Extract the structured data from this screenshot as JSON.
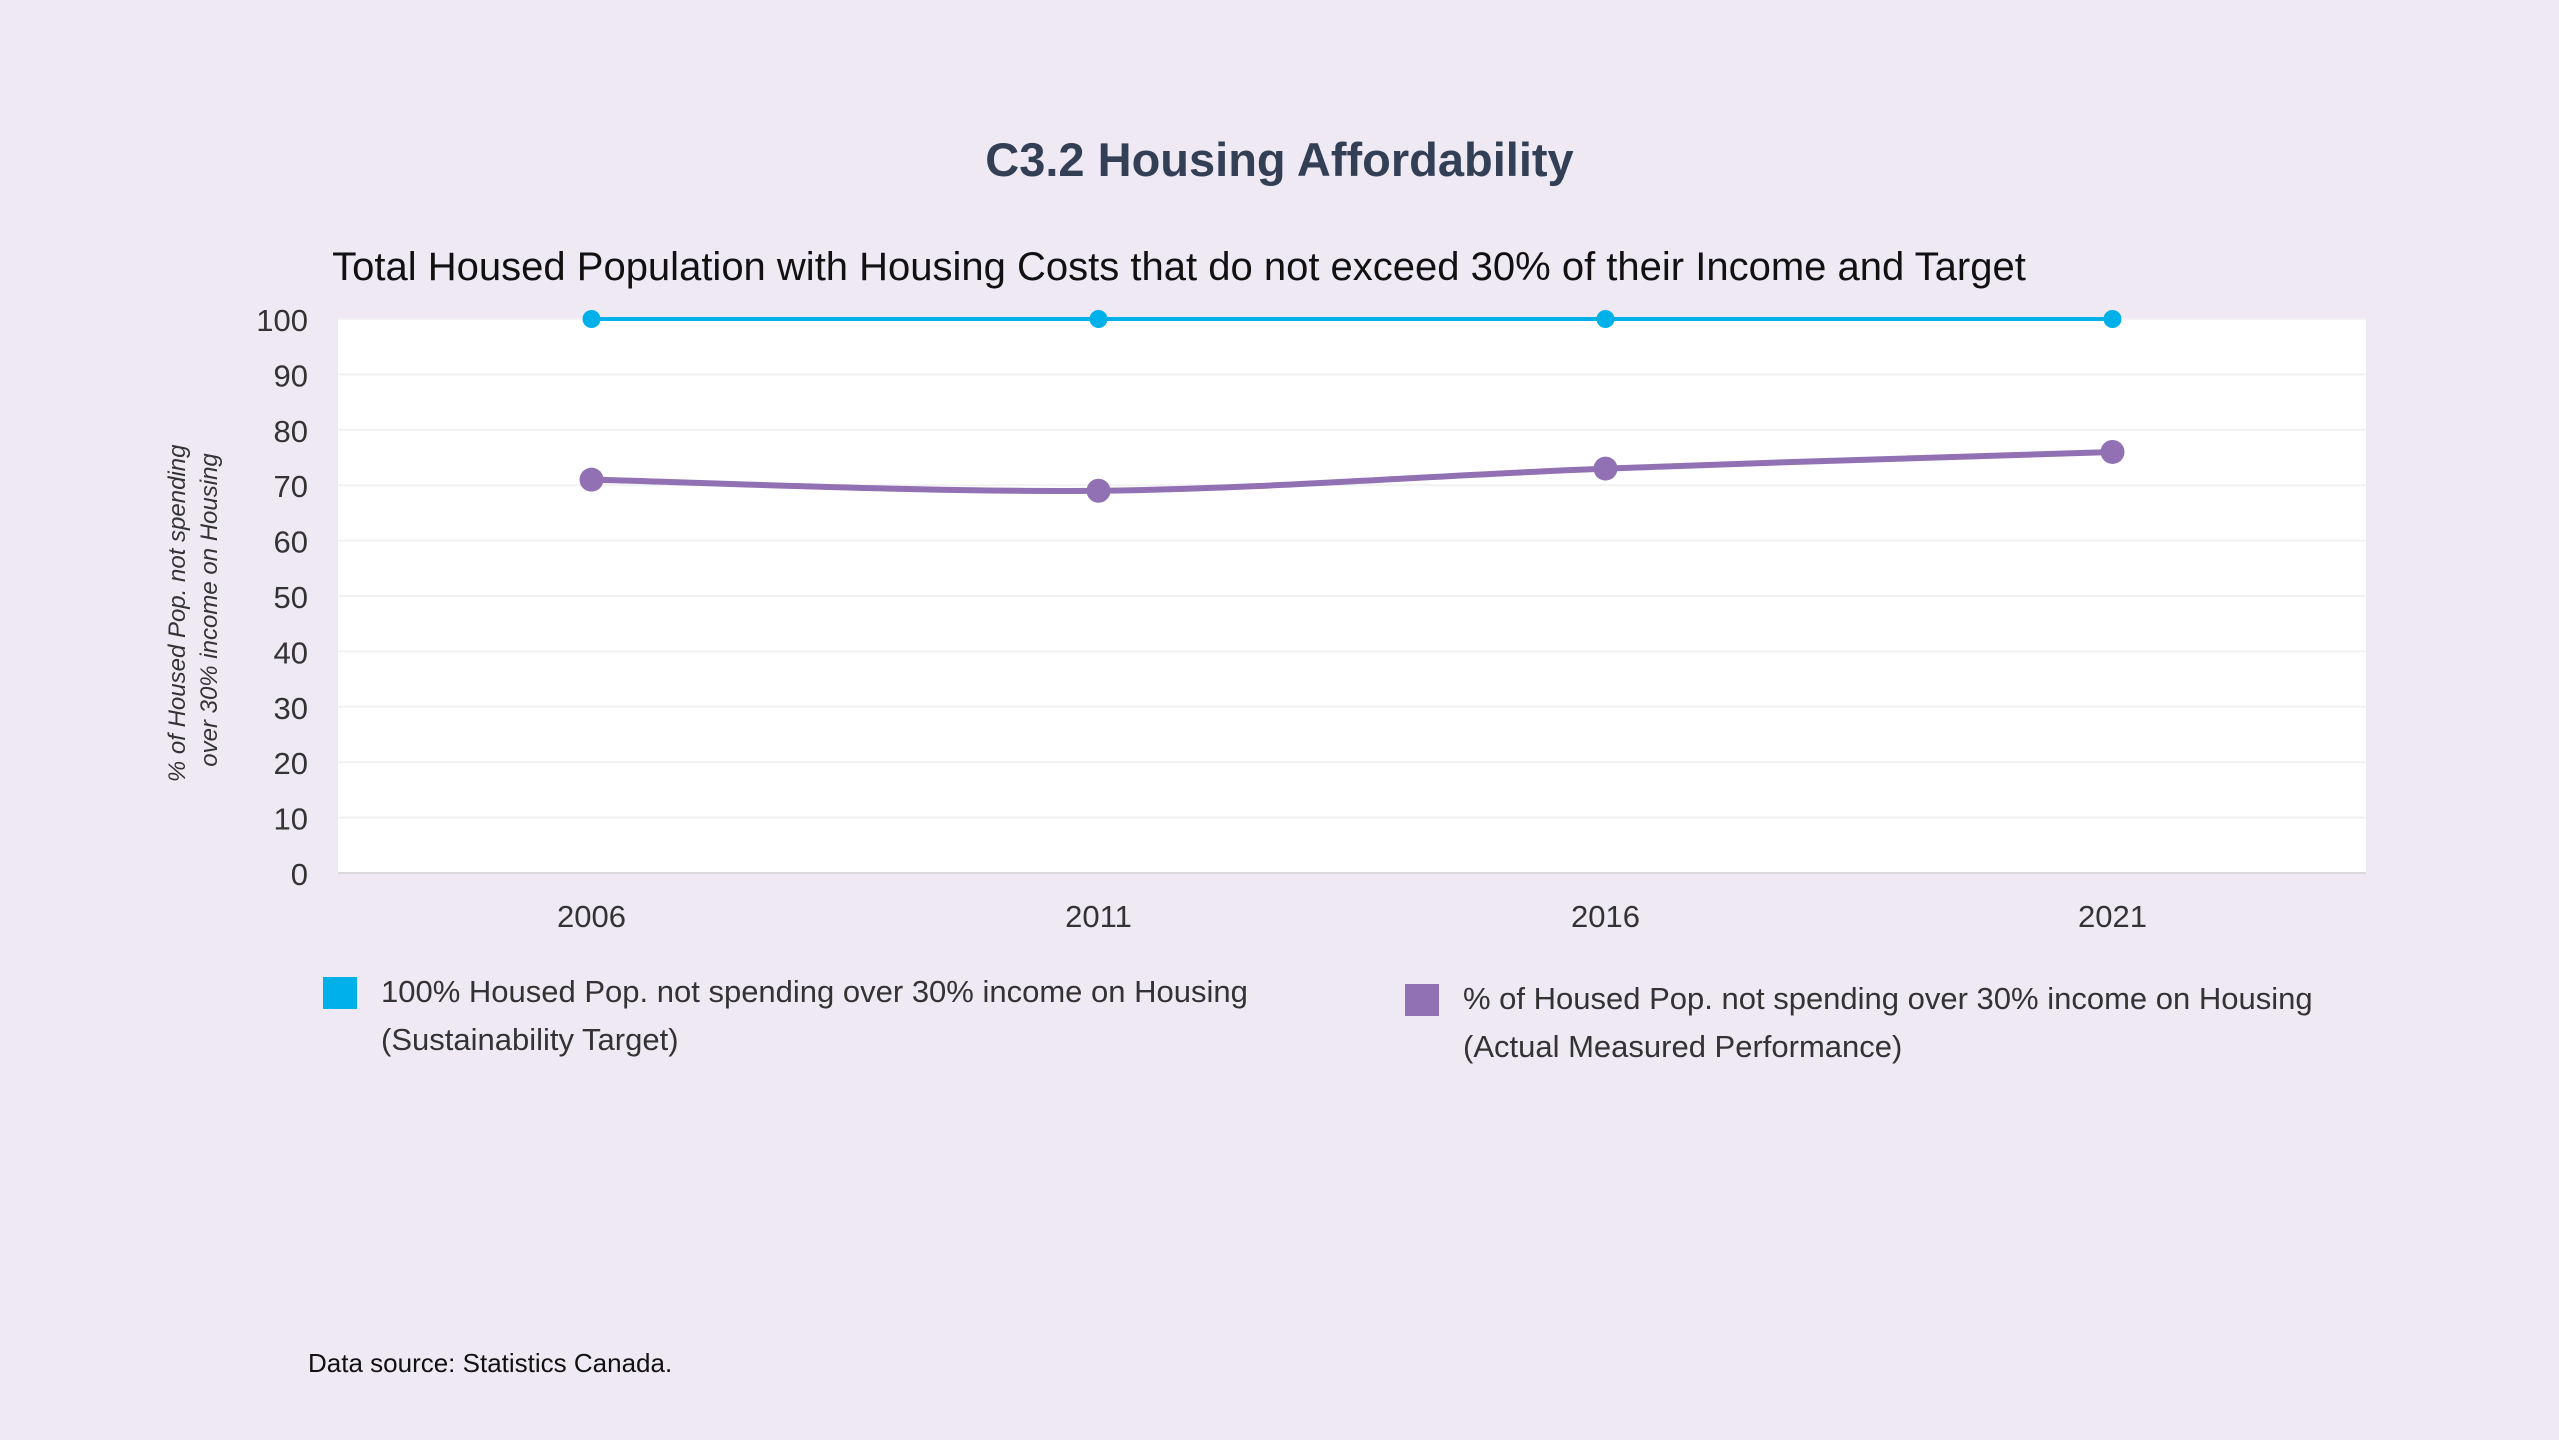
{
  "page": {
    "title": "C3.2 Housing Affordability",
    "source_note": "Data source: Statistics Canada."
  },
  "chart_data": {
    "type": "line",
    "title": "Total Housed Population with Housing Costs that do not exceed 30% of their Income and Target",
    "ylabel": "% of Housed Pop. not spending over 30% income on Housing",
    "xlabel": "",
    "categories": [
      "2006",
      "2011",
      "2016",
      "2021"
    ],
    "ylim": [
      0,
      100
    ],
    "yticks": [
      0,
      10,
      20,
      30,
      40,
      50,
      60,
      70,
      80,
      90,
      100
    ],
    "grid": true,
    "legend_position": "bottom",
    "series": [
      {
        "name": "100% Housed Pop. not spending over 30% income on Housing (Sustainability Target)",
        "legend_lines": [
          "100% Housed Pop. not spending over 30% income on Housing",
          "(Sustainability Target)"
        ],
        "values": [
          100,
          100,
          100,
          100
        ],
        "color": "#00b0e8"
      },
      {
        "name": "% of Housed Pop. not spending over 30% income on Housing (Actual Measured Performance)",
        "legend_lines": [
          "% of Housed Pop. not spending over 30% income on Housing",
          "(Actual Measured Performance)"
        ],
        "values": [
          71,
          69,
          73,
          76
        ],
        "color": "#9171b3"
      }
    ]
  }
}
